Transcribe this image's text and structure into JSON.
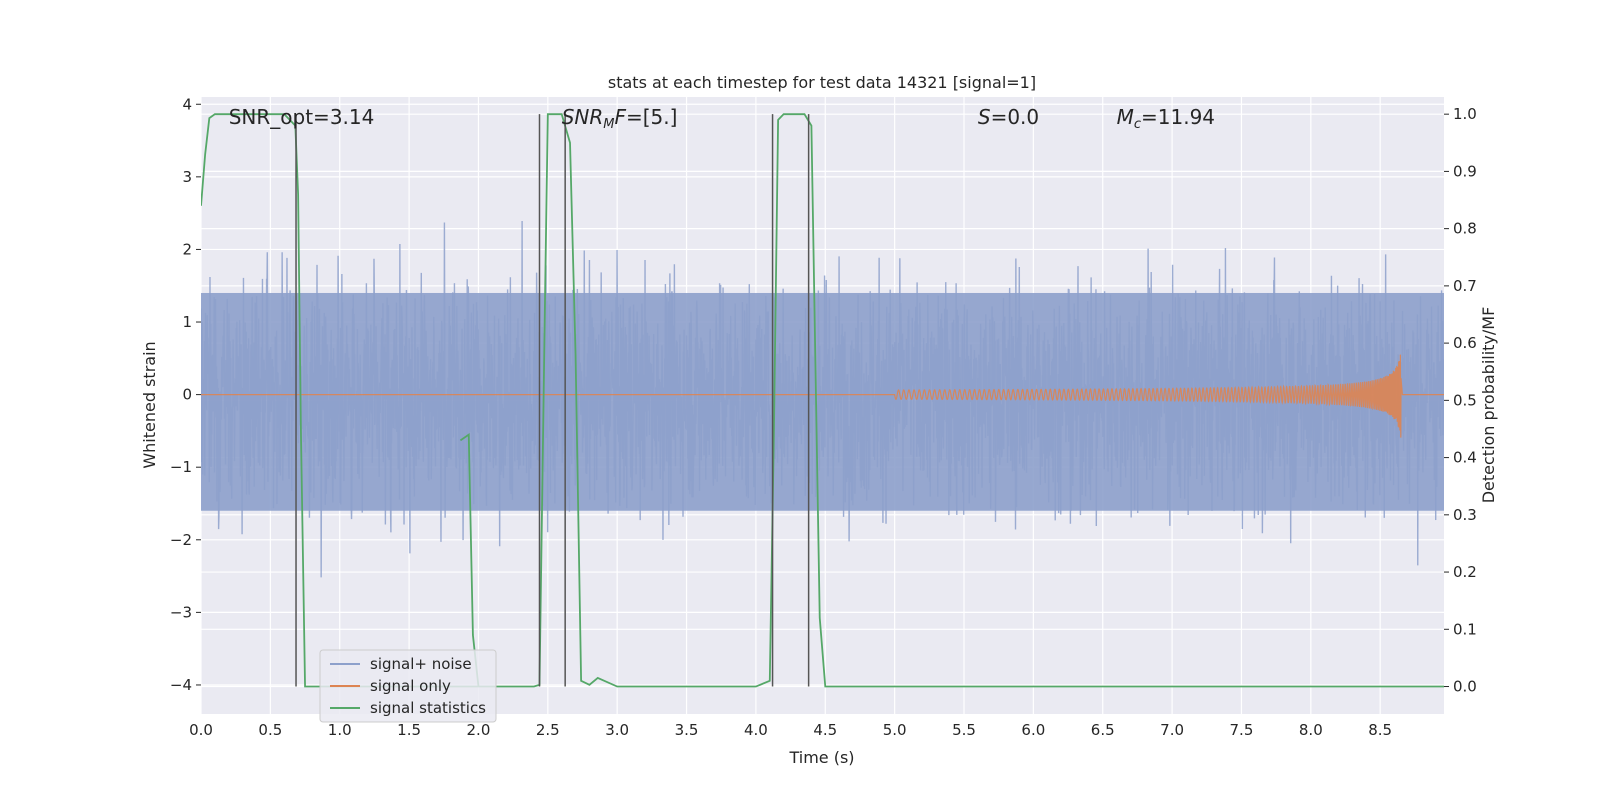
{
  "chart_data": {
    "type": "line",
    "title": "stats at each timestep for test data 14321 [signal=1]",
    "xlabel": "Time (s)",
    "ylabel": "Whitened strain",
    "y2label": "Detection probability/MF",
    "xlim": [
      0,
      8.96
    ],
    "ylim": [
      -4.4,
      4.1
    ],
    "y2lim": [
      -0.048,
      1.03
    ],
    "x_ticks": [
      "0.0",
      "0.5",
      "1.0",
      "1.5",
      "2.0",
      "2.5",
      "3.0",
      "3.5",
      "4.0",
      "4.5",
      "5.0",
      "5.5",
      "6.0",
      "6.5",
      "7.0",
      "7.5",
      "8.0",
      "8.5"
    ],
    "y_ticks": [
      "4",
      "3",
      "2",
      "1",
      "0",
      "−1",
      "−2",
      "−3",
      "−4"
    ],
    "y2_ticks": [
      "1.0",
      "0.9",
      "0.8",
      "0.7",
      "0.6",
      "0.5",
      "0.4",
      "0.3",
      "0.2",
      "0.1",
      "0.0"
    ],
    "grid": true,
    "legend_placement": "lower-left",
    "annotations": [
      {
        "prefix": "SNR_opt=3.14",
        "math": "",
        "sub": "",
        "suffix": "",
        "x": 0.2
      },
      {
        "prefix": "",
        "math": "SNR",
        "sub": "M",
        "suffix": "F=[5.]",
        "x": 2.6
      },
      {
        "prefix": "",
        "math": "S",
        "sub": "",
        "suffix": "=0.0",
        "x": 5.6
      },
      {
        "prefix": "",
        "math": "M",
        "sub": "c",
        "suffix": "=11.94",
        "x": 6.6
      }
    ],
    "series": [
      {
        "name": "signal+ noise",
        "color": "#8da0cb",
        "noise_x_range": [
          0,
          8.96
        ],
        "noise_core_band": [
          -1.6,
          1.4
        ],
        "noise_peak_range": [
          -4.0,
          3.9
        ]
      },
      {
        "name": "signal only",
        "color": "#dd8452",
        "chirp_start": 5.0,
        "chirp_end": 8.65,
        "chirp_peak_amplitude": 0.6
      },
      {
        "name": "signal statistics",
        "color": "#55a868",
        "x": [
          0.0,
          0.03,
          0.06,
          0.1,
          0.2,
          0.6,
          0.68,
          0.7,
          0.72,
          0.75,
          0.8,
          2.1,
          2.4,
          2.44,
          2.48,
          2.5,
          2.55,
          2.6,
          2.66,
          2.7,
          2.74,
          2.8,
          2.86,
          3.0,
          3.5,
          4.0,
          4.1,
          4.13,
          4.16,
          4.2,
          4.35,
          4.4,
          4.43,
          4.46,
          4.5,
          8.96
        ],
        "y": [
          0.84,
          0.93,
          0.993,
          1.0,
          1.0,
          1.0,
          0.98,
          0.86,
          0.45,
          0.0,
          0.0,
          0.0,
          0.0,
          0.003,
          0.68,
          1.0,
          1.0,
          1.0,
          0.95,
          0.58,
          0.01,
          0.003,
          0.015,
          0.0,
          0.0,
          0.0,
          0.01,
          0.45,
          0.99,
          1.0,
          1.0,
          0.98,
          0.55,
          0.12,
          0.0,
          0.0
        ]
      },
      {
        "name": "",
        "color": "#55a868",
        "x": [
          1.87,
          1.93,
          1.96,
          2.0
        ],
        "y": [
          0.43,
          0.44,
          0.09,
          0.0
        ]
      }
    ],
    "vlines": [
      {
        "x": 0.685,
        "y0": 0.0,
        "y1": 1.0
      },
      {
        "x": 2.44,
        "y0": 0.0,
        "y1": 1.0
      },
      {
        "x": 2.625,
        "y0": 0.0,
        "y1": 1.0
      },
      {
        "x": 4.12,
        "y0": 0.0,
        "y1": 1.0
      },
      {
        "x": 4.38,
        "y0": 0.0,
        "y1": 1.0
      }
    ]
  }
}
